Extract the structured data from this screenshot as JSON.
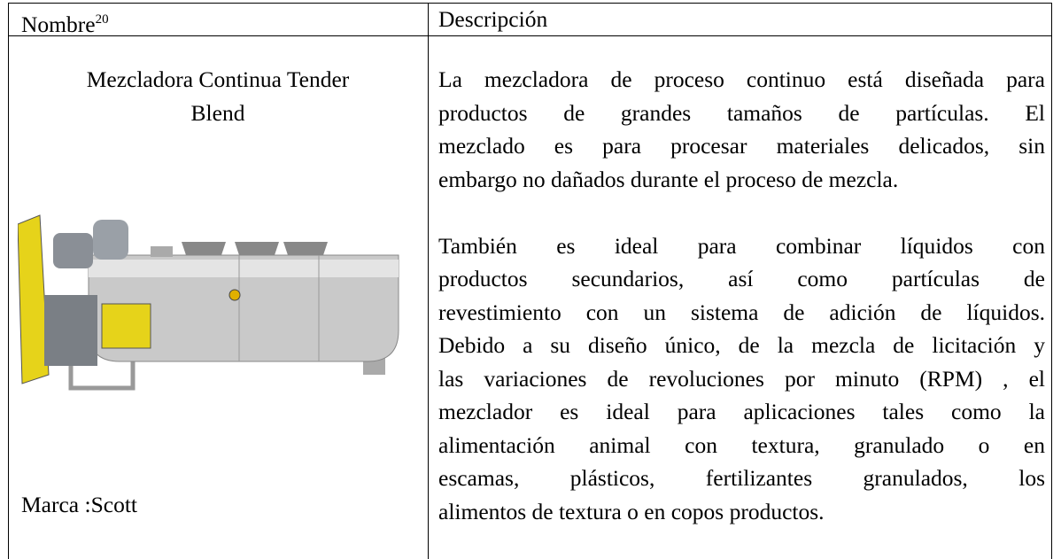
{
  "header": {
    "columns": [
      {
        "label": "Nombre",
        "footnote": "20"
      },
      {
        "label": "Descripción"
      }
    ]
  },
  "row": {
    "name_lines": [
      "Mezcladora Continua Tender",
      "Blend"
    ],
    "brand": "Marca :Scott",
    "paragraphs": [
      [
        "La mezcladora de proceso continuo está diseñada para",
        "productos de grandes tamaños de partículas. El",
        "mezclado es para procesar materiales delicados, sin",
        "embargo no dañados durante el proceso de mezcla."
      ],
      [
        "También es ideal para combinar líquidos con",
        "productos secundarios, así como partículas de",
        "revestimiento con un sistema de adición de líquidos.",
        "Debido a su diseño único, de la mezcla de licitación y",
        "las variaciones de revoluciones por minuto (RPM) , el",
        "mezclador es ideal para aplicaciones tales como la",
        "alimentación animal con textura, granulado o en",
        "escamas, plásticos, fertilizantes granulados, los",
        "alimentos de textura o en copos productos."
      ]
    ]
  }
}
